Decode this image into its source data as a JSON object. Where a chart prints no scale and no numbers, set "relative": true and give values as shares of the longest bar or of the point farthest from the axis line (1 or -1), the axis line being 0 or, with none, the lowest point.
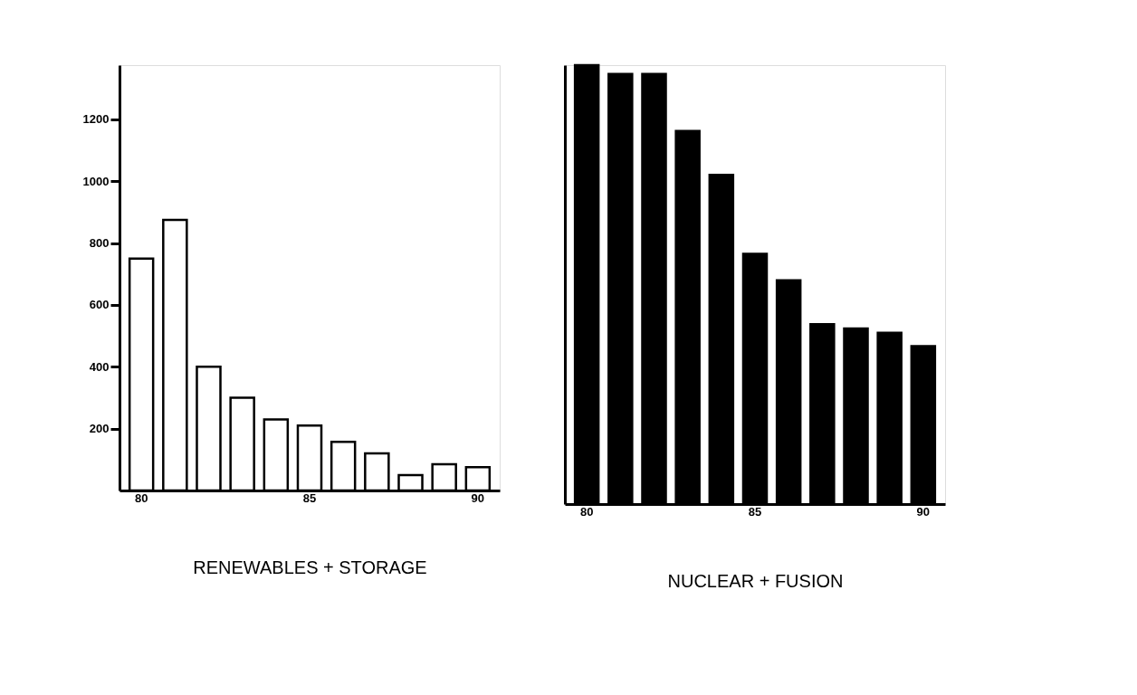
{
  "chart_data": [
    {
      "type": "bar",
      "categories": [
        "80",
        null,
        null,
        null,
        null,
        "85",
        null,
        null,
        null,
        null,
        "90"
      ],
      "xlabel": "RENEWABLES + STORAGE",
      "ylim": [
        0,
        1375
      ],
      "yticks": [
        200,
        400,
        600,
        800,
        1000,
        1200
      ],
      "grid": false,
      "series": [
        {
          "color": "#ffffff",
          "values": [
            750,
            875,
            400,
            300,
            230,
            210,
            157,
            120,
            50,
            85,
            75
          ]
        }
      ]
    },
    {
      "type": "bar",
      "categories": [
        "80",
        null,
        null,
        null,
        null,
        "85",
        null,
        null,
        null,
        null,
        "90"
      ],
      "xlabel": "NUCLEAR + FUSION",
      "relative": true,
      "grid": false,
      "series": [
        {
          "color": "#000000",
          "values": [
            1,
            0.98,
            0.98,
            0.85,
            0.75,
            0.57,
            0.51,
            0.41,
            0.4,
            0.39,
            0.36
          ]
        }
      ]
    }
  ]
}
